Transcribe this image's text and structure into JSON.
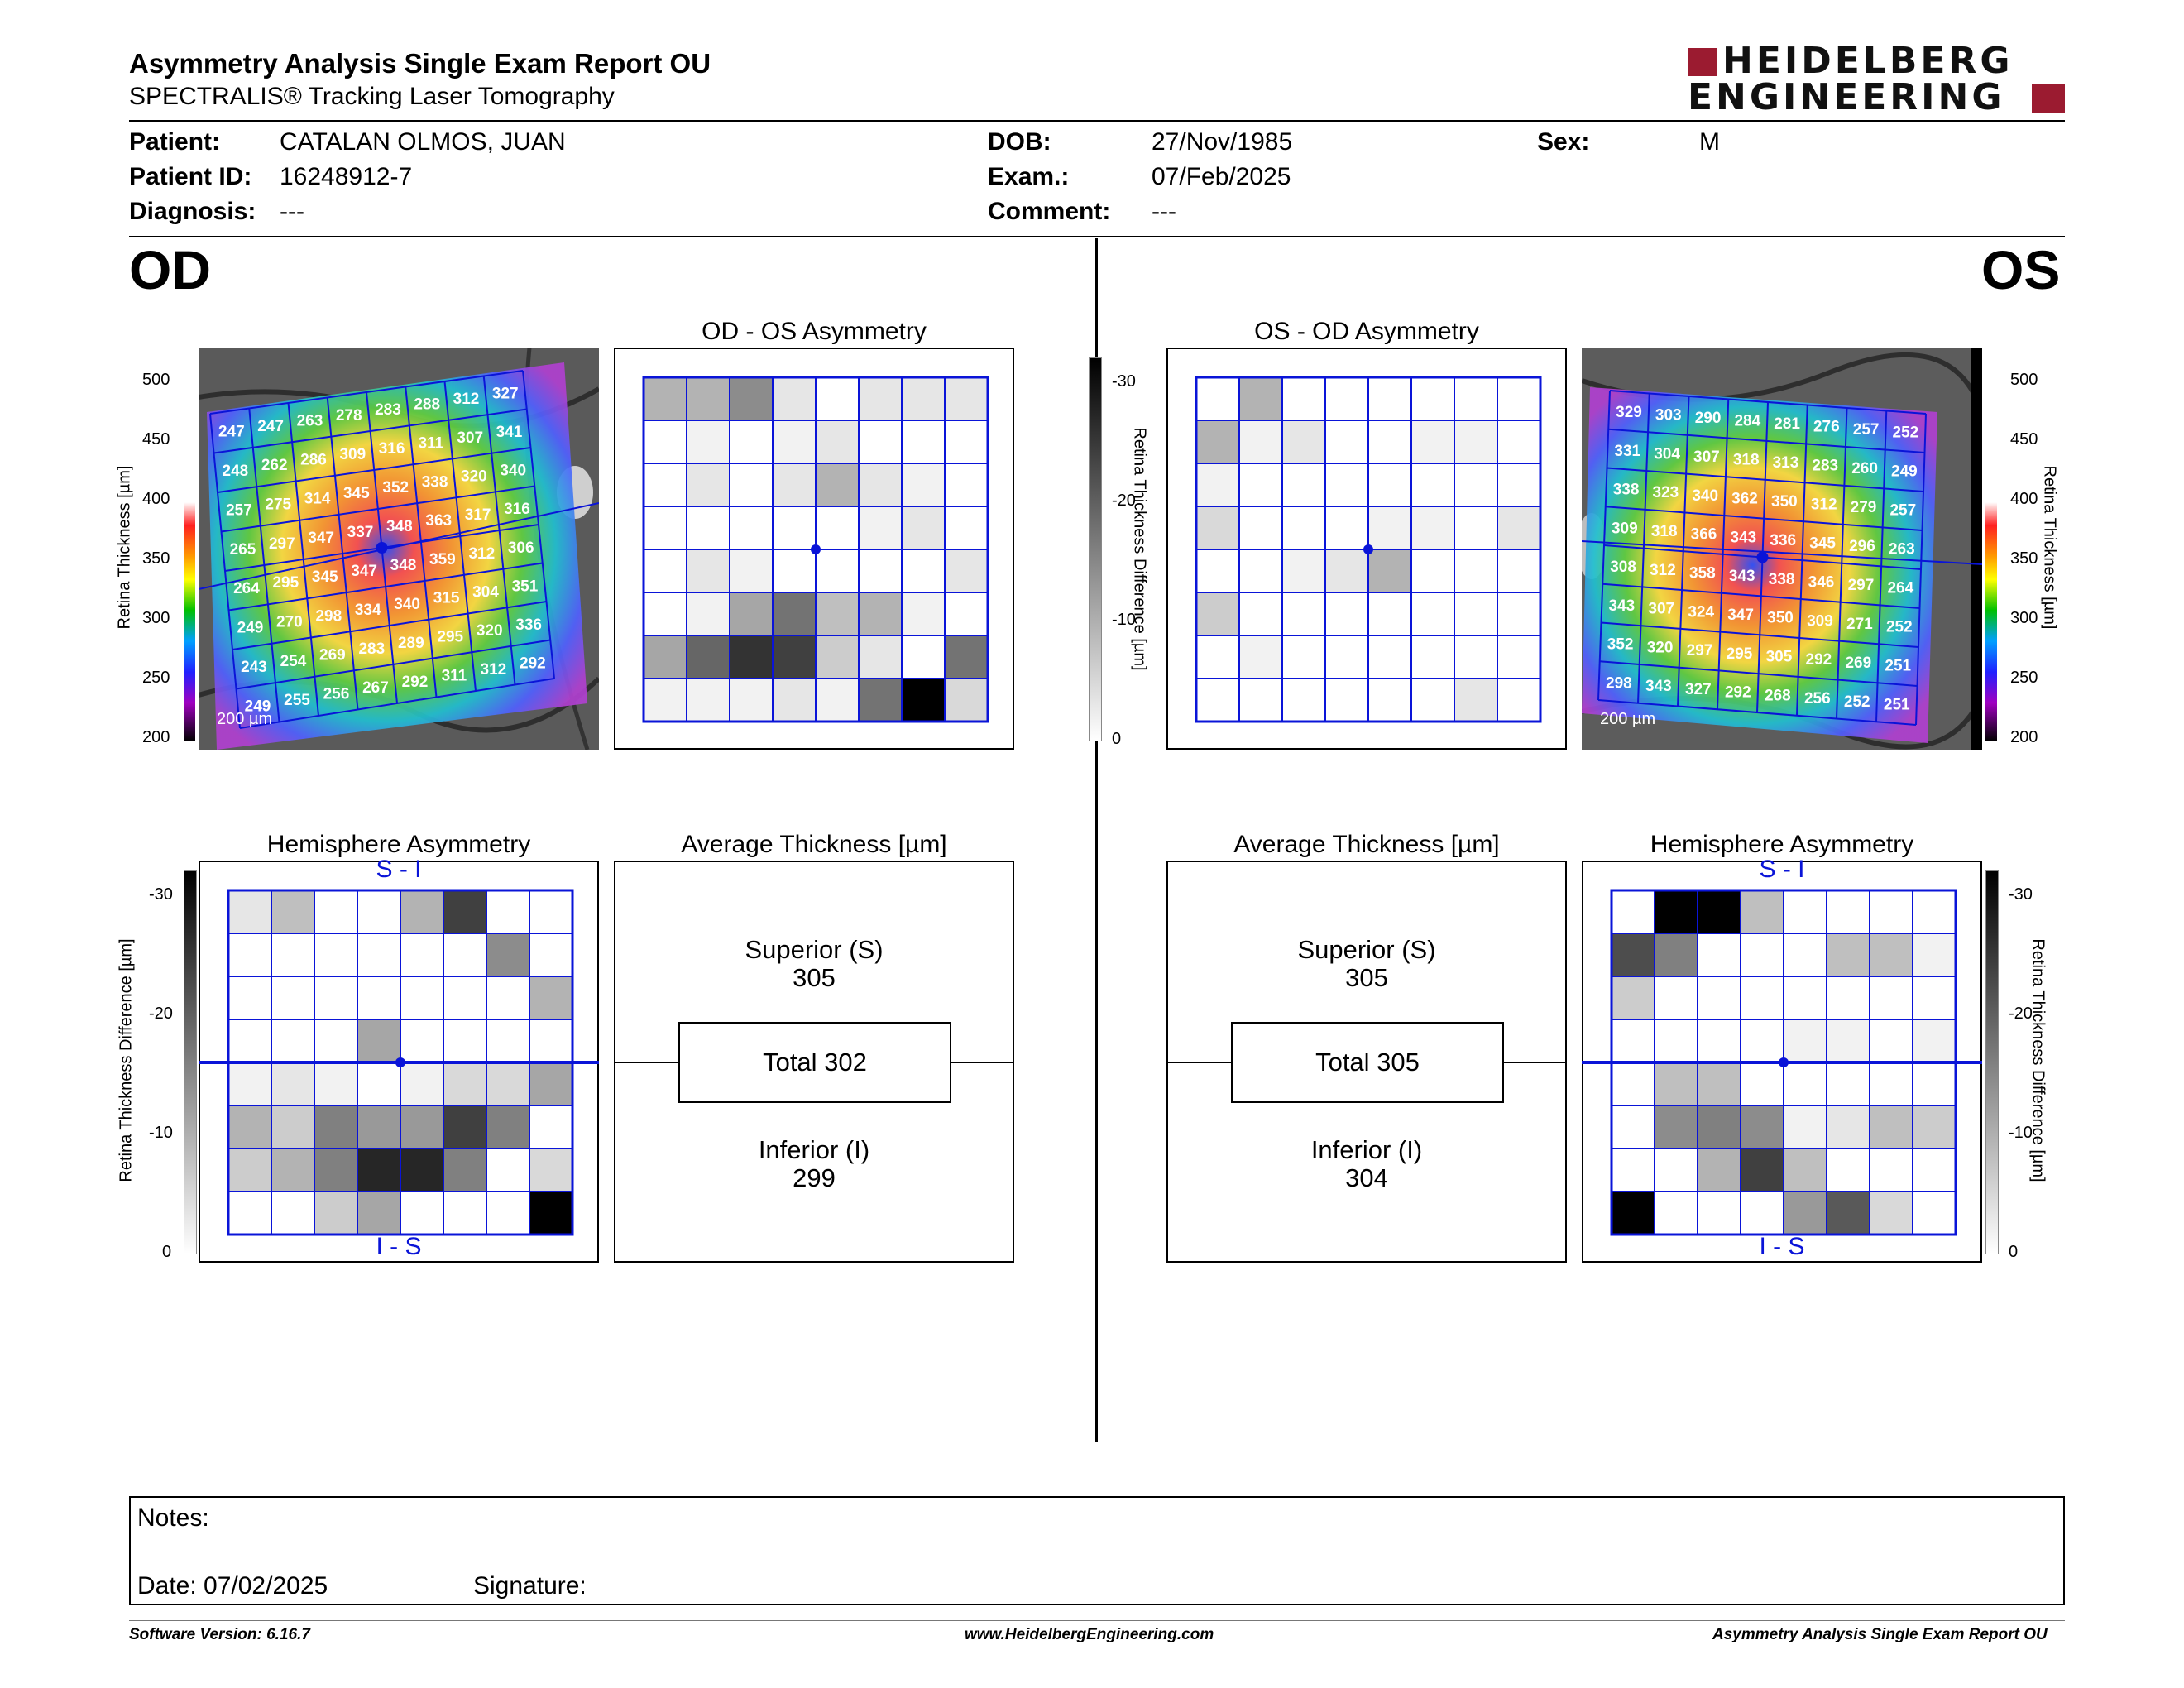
{
  "header": {
    "title": "Asymmetry Analysis Single Exam Report OU",
    "subtitle": "SPECTRALIS® Tracking Laser Tomography",
    "logo_line1": "HEIDELBERG",
    "logo_line2": "ENGINEERING"
  },
  "patient": {
    "patient_label": "Patient:",
    "patient_value": "CATALAN OLMOS, JUAN",
    "id_label": "Patient ID:",
    "id_value": "16248912-7",
    "diagnosis_label": "Diagnosis:",
    "diagnosis_value": "---",
    "dob_label": "DOB:",
    "dob_value": "27/Nov/1985",
    "exam_label": "Exam.:",
    "exam_value": "07/Feb/2025",
    "comment_label": "Comment:",
    "comment_value": "---",
    "sex_label": "Sex:",
    "sex_value": "M"
  },
  "od": {
    "eye_label": "OD",
    "asym_title": "OD - OS Asymmetry",
    "hemi_title": "Hemisphere Asymmetry",
    "avg_title": "Average Thickness [µm]",
    "superior_label": "Superior (S)",
    "superior_value": "305",
    "total_label": "Total 302",
    "inferior_label": "Inferior (I)",
    "inferior_value": "299",
    "hemi_top": "S - I",
    "hemi_bottom": "I - S",
    "scale_bar": "200 µm",
    "thickness_grid": [
      [
        247,
        247,
        263,
        278,
        283,
        288,
        312,
        327
      ],
      [
        248,
        262,
        286,
        309,
        316,
        311,
        307,
        341
      ],
      [
        257,
        275,
        314,
        345,
        352,
        338,
        320,
        340
      ],
      [
        265,
        297,
        347,
        337,
        348,
        363,
        317,
        316
      ],
      [
        264,
        295,
        345,
        347,
        348,
        359,
        312,
        306
      ],
      [
        249,
        270,
        298,
        334,
        340,
        315,
        304,
        351
      ],
      [
        243,
        254,
        269,
        283,
        289,
        295,
        320,
        336
      ],
      [
        249,
        255,
        256,
        267,
        292,
        311,
        312,
        292
      ]
    ],
    "asym_grid": [
      [
        0.3,
        0.3,
        0.45,
        0.1,
        0,
        0.1,
        0.1,
        0.1
      ],
      [
        0,
        0.05,
        0,
        0.05,
        0.1,
        0,
        0,
        0
      ],
      [
        0,
        0.1,
        0,
        0.1,
        0.3,
        0.1,
        0.05,
        0
      ],
      [
        0,
        0,
        0,
        0,
        0,
        0.05,
        0.1,
        0
      ],
      [
        0,
        0.1,
        0.05,
        0,
        0,
        0,
        0,
        0.1
      ],
      [
        0,
        0.05,
        0.35,
        0.55,
        0.25,
        0.3,
        0.05,
        0
      ],
      [
        0.35,
        0.6,
        0.8,
        0.75,
        0.2,
        0.1,
        0,
        0.55
      ],
      [
        0.05,
        0.05,
        0.05,
        0.1,
        0.05,
        0.55,
        1,
        0.15
      ]
    ],
    "hemi_grid": [
      [
        0.1,
        0.25,
        0,
        0,
        0.3,
        0.75,
        0,
        0
      ],
      [
        0,
        0,
        0,
        0,
        0,
        0,
        0.45,
        0
      ],
      [
        0,
        0,
        0,
        0,
        0,
        0,
        0,
        0.3
      ],
      [
        0,
        0,
        0,
        0.35,
        0,
        0,
        0,
        0
      ],
      [
        0.05,
        0.1,
        0.05,
        0,
        0.05,
        0.15,
        0.15,
        0.35
      ],
      [
        0.3,
        0.2,
        0.5,
        0.4,
        0.4,
        0.75,
        0.5,
        0
      ],
      [
        0.2,
        0.3,
        0.5,
        0.85,
        0.85,
        0.5,
        0,
        0.15
      ],
      [
        0,
        0,
        0.2,
        0.35,
        0,
        0,
        0,
        1
      ]
    ]
  },
  "os": {
    "eye_label": "OS",
    "asym_title": "OS - OD Asymmetry",
    "hemi_title": "Hemisphere Asymmetry",
    "avg_title": "Average Thickness [µm]",
    "superior_label": "Superior (S)",
    "superior_value": "305",
    "total_label": "Total 305",
    "inferior_label": "Inferior (I)",
    "inferior_value": "304",
    "hemi_top": "S - I",
    "hemi_bottom": "I - S",
    "scale_bar": "200 µm",
    "thickness_grid": [
      [
        329,
        303,
        290,
        284,
        281,
        276,
        257,
        252
      ],
      [
        331,
        304,
        307,
        318,
        313,
        283,
        260,
        249
      ],
      [
        338,
        323,
        340,
        362,
        350,
        312,
        279,
        257
      ],
      [
        309,
        318,
        366,
        343,
        336,
        345,
        296,
        263
      ],
      [
        308,
        312,
        358,
        343,
        338,
        346,
        297,
        264
      ],
      [
        343,
        307,
        324,
        347,
        350,
        309,
        271,
        252
      ],
      [
        352,
        320,
        297,
        295,
        305,
        292,
        269,
        251
      ],
      [
        298,
        343,
        327,
        292,
        268,
        256,
        252,
        251
      ]
    ],
    "asym_grid": [
      [
        0,
        0.3,
        0,
        0,
        0,
        0,
        0,
        0
      ],
      [
        0.3,
        0.05,
        0.1,
        0,
        0,
        0.05,
        0.05,
        0
      ],
      [
        0.05,
        0,
        0,
        0,
        0,
        0,
        0,
        0
      ],
      [
        0.15,
        0,
        0,
        0,
        0.05,
        0.05,
        0,
        0.1
      ],
      [
        0,
        0,
        0.05,
        0.1,
        0.3,
        0,
        0,
        0
      ],
      [
        0.2,
        0,
        0,
        0,
        0,
        0,
        0,
        0
      ],
      [
        0,
        0.05,
        0,
        0,
        0,
        0,
        0,
        0
      ],
      [
        0,
        0,
        0,
        0,
        0,
        0,
        0.1,
        0
      ]
    ],
    "hemi_grid": [
      [
        0,
        1,
        1,
        0.25,
        0,
        0,
        0,
        0
      ],
      [
        0.7,
        0.5,
        0,
        0,
        0,
        0.25,
        0.25,
        0.05
      ],
      [
        0.2,
        0,
        0,
        0,
        0,
        0,
        0,
        0
      ],
      [
        0,
        0,
        0,
        0,
        0.05,
        0.05,
        0,
        0.05
      ],
      [
        0,
        0.25,
        0.25,
        0,
        0,
        0,
        0,
        0
      ],
      [
        0,
        0.45,
        0.5,
        0.45,
        0.05,
        0.1,
        0.25,
        0.2
      ],
      [
        0,
        0,
        0.3,
        0.75,
        0.25,
        0,
        0,
        0
      ],
      [
        1,
        0,
        0,
        0,
        0.4,
        0.65,
        0.15,
        0
      ]
    ]
  },
  "color_scale": {
    "label": "Retina Thickness [µm]",
    "ticks": [
      "500",
      "450",
      "400",
      "350",
      "300",
      "250",
      "200"
    ]
  },
  "diff_scale": {
    "label": "Retina Thickness Difference [µm]",
    "ticks": [
      "-30",
      "-20",
      "-10",
      "0"
    ]
  },
  "notes": {
    "notes_label": "Notes:",
    "date_label": "Date: 07/02/2025",
    "signature_label": "Signature:"
  },
  "footer": {
    "software": "Software Version: 6.16.7",
    "website": "www.HeidelbergEngineering.com",
    "report": "Asymmetry Analysis Single Exam Report OU"
  },
  "colors": {
    "grid_blue": "#0a14d8",
    "brand_red": "#9b1b30"
  }
}
